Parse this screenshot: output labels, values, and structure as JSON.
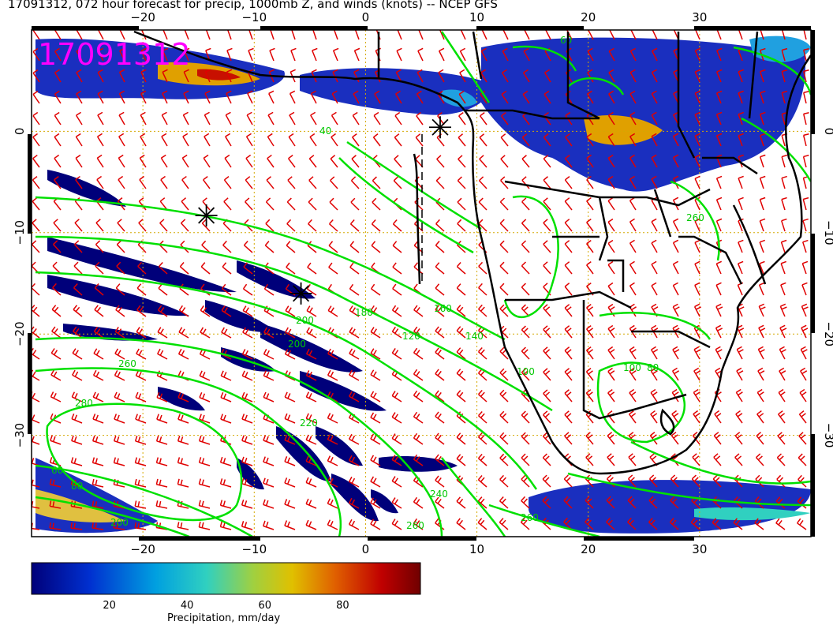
{
  "title": "17091312, 072 hour forecast for precip, 1000mb Z, and winds (knots) -- NCEP GFS",
  "stamp": "17091312",
  "map": {
    "lon_range": [
      -30,
      40
    ],
    "lat_range": [
      -40,
      10
    ],
    "lon_ticks": [
      -20,
      -10,
      0,
      10,
      20,
      30
    ],
    "lat_ticks": [
      0,
      -10,
      -20,
      -30
    ],
    "contour_color": "#00e000",
    "barb_color": "#e00000",
    "grid_color": "#d4a800",
    "contour_labels": [
      "40",
      "60",
      "80",
      "100",
      "100",
      "120",
      "140",
      "160",
      "180",
      "200",
      "200",
      "220",
      "240",
      "260",
      "260",
      "280",
      "60",
      "80",
      "260",
      "260",
      "200"
    ],
    "markers": [
      {
        "name": "star-1",
        "lon": -14.3,
        "lat": -8.3
      },
      {
        "name": "star-2",
        "lon": -5.8,
        "lat": -16.0
      },
      {
        "name": "star-3",
        "lon": 6.7,
        "lat": 0.4
      }
    ]
  },
  "colorbar": {
    "label": "Precipitation, mm/day",
    "ticks": [
      "20",
      "40",
      "60",
      "80"
    ],
    "tick_values": [
      20,
      40,
      60,
      80
    ],
    "range": [
      0,
      100
    ],
    "colors": [
      "#00007a",
      "#0030d0",
      "#00a0e0",
      "#30d0c0",
      "#a0d040",
      "#e0c000",
      "#e06000",
      "#c00000",
      "#700000"
    ]
  }
}
